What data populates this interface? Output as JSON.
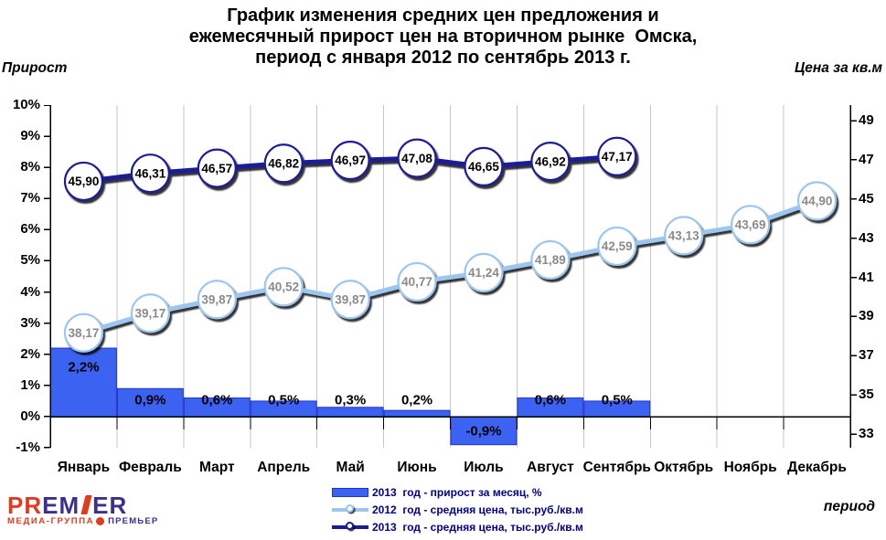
{
  "title": {
    "lines": [
      "График изменения средних цен предложения и",
      "ежемесячный прирост цен на вторичном рынке  Омска,",
      "период с января 2012 по сентябрь 2013 г."
    ]
  },
  "axes": {
    "left_title": "Прирост",
    "right_title": "Цена за кв.м",
    "x_title": "период",
    "left_ticks": [
      "10%",
      "9%",
      "8%",
      "7%",
      "6%",
      "5%",
      "4%",
      "3%",
      "2%",
      "1%",
      "0%",
      "-1%"
    ],
    "right_ticks": [
      "49",
      "47",
      "45",
      "43",
      "41",
      "39",
      "37",
      "35",
      "33"
    ]
  },
  "chart_data": {
    "type": "combo-bar-line",
    "categories": [
      "Январь",
      "Февраль",
      "Март",
      "Апрель",
      "Май",
      "Июнь",
      "Июль",
      "Август",
      "Сентябрь",
      "Октябрь",
      "Ноябрь",
      "Декабрь"
    ],
    "left_axis": {
      "label": "Прирост",
      "range": [
        -1,
        10
      ],
      "tick_step": 1,
      "unit": "%"
    },
    "right_axis": {
      "label": "Цена за кв.м",
      "range": [
        33,
        49
      ],
      "tick_step": 2,
      "unit": "тыс.руб./кв.м"
    },
    "grid": "vertical-only",
    "legend_position": "bottom-center",
    "series": [
      {
        "name": "2013  год - прирост за месяц, %",
        "type": "bar",
        "axis": "left",
        "values": [
          2.2,
          0.9,
          0.6,
          0.5,
          0.3,
          0.2,
          -0.9,
          0.6,
          0.5,
          null,
          null,
          null
        ],
        "labels": [
          "2,2%",
          "0,9%",
          "0,6%",
          "0,5%",
          "0,3%",
          "0,2%",
          "-0,9%",
          "0,6%",
          "0,5%",
          null,
          null,
          null
        ]
      },
      {
        "name": "2012  год - средняя цена, тыс.руб./кв.м",
        "type": "line",
        "axis": "right",
        "values": [
          38.17,
          39.17,
          39.87,
          40.52,
          39.87,
          40.77,
          41.24,
          41.89,
          42.59,
          43.13,
          43.69,
          44.9
        ],
        "labels": [
          "38,17",
          "39,17",
          "39,87",
          "40,52",
          "39,87",
          "40,77",
          "41,24",
          "41,89",
          "42,59",
          "43,13",
          "43,69",
          "44,90"
        ]
      },
      {
        "name": "2013  год - средняя цена, тыс.руб./кв.м",
        "type": "line",
        "axis": "right",
        "values": [
          45.9,
          46.31,
          46.57,
          46.82,
          46.97,
          47.08,
          46.65,
          46.92,
          47.17,
          null,
          null,
          null
        ],
        "labels": [
          "45,90",
          "46,31",
          "46,57",
          "46,82",
          "46,97",
          "47,08",
          "46,65",
          "46,92",
          "47,17",
          null,
          null,
          null
        ]
      }
    ]
  },
  "legend": {
    "items": [
      {
        "swatch": "bar",
        "label": "2013  год - прирост за месяц, %"
      },
      {
        "swatch": "line-light",
        "label": "2012  год - средняя цена, тыс.руб./кв.м"
      },
      {
        "swatch": "line-dark",
        "label": "2013  год - средняя цена, тыс.руб./кв.м"
      }
    ]
  },
  "logo": {
    "part1": "PR",
    "part2": "EM",
    "part3": "ER",
    "sub1": "МЕДИА-ГРУППА",
    "sub2": "ПРЕМЬЕР"
  },
  "colors": {
    "bar_fill": "#3b62f0",
    "bar_border": "#2233cc",
    "line_2012": "#9cc6f0",
    "line_2013": "#1c1c96",
    "point_fill": "#ffffff",
    "label_2012": "#8a8a8a",
    "label_2013": "#000000",
    "grid": "#c6c6c6",
    "axis": "#000000",
    "legend_text": "#00008b",
    "logo_red": "#e23a1d",
    "logo_purple": "#3b2f8f"
  }
}
